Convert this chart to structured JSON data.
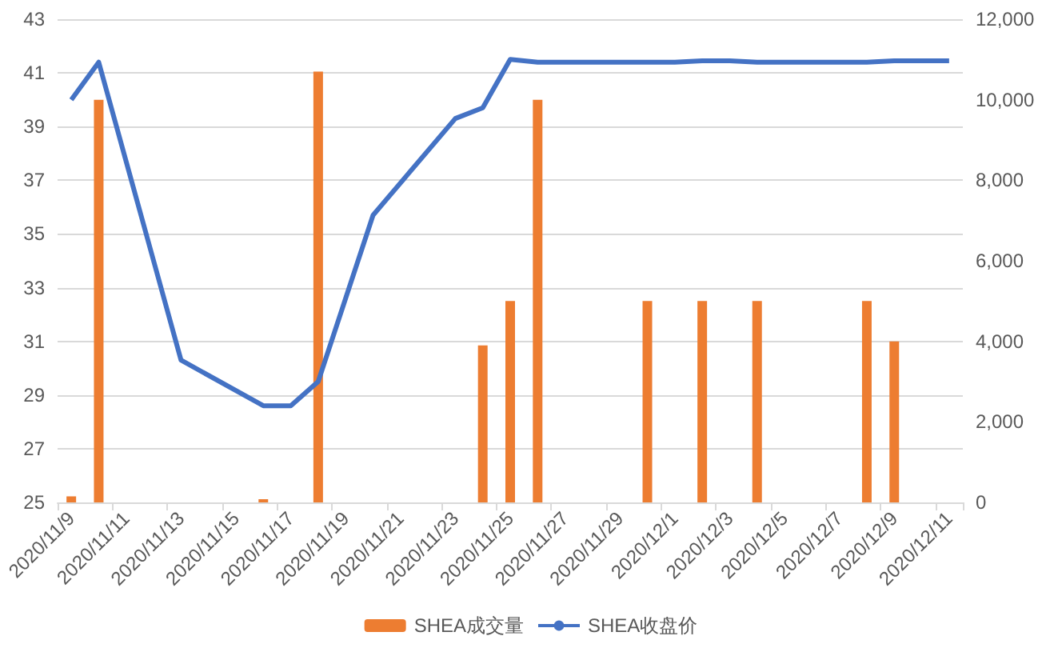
{
  "chart_data": {
    "type": "bar",
    "categories": [
      "2020/11/9",
      null,
      "2020/11/11",
      null,
      "2020/11/13",
      null,
      "2020/11/15",
      null,
      "2020/11/17",
      null,
      "2020/11/19",
      null,
      "2020/11/21",
      null,
      "2020/11/23",
      null,
      "2020/11/25",
      null,
      "2020/11/27",
      null,
      "2020/11/29",
      null,
      "2020/12/1",
      null,
      "2020/12/3",
      null,
      "2020/12/5",
      null,
      "2020/12/7",
      null,
      "2020/12/9",
      null,
      "2020/12/11"
    ],
    "series": [
      {
        "name": "SHEA成交量",
        "axis": "y2",
        "color": "#ed7d31",
        "values": [
          150,
          10000,
          null,
          null,
          null,
          null,
          null,
          80,
          null,
          10700,
          null,
          null,
          null,
          null,
          null,
          3900,
          5000,
          10000,
          null,
          null,
          null,
          5000,
          null,
          5000,
          null,
          5000,
          null,
          null,
          null,
          5000,
          4000,
          null,
          null
        ]
      },
      {
        "name": "SHEA收盘价",
        "type": "line",
        "axis": "y",
        "color": "#4472c4",
        "values": [
          40,
          41.4,
          37.7,
          34,
          30.3,
          null,
          null,
          28.6,
          28.6,
          29.5,
          32.6,
          35.7,
          null,
          null,
          39.3,
          39.7,
          41.5,
          41.4,
          41.4,
          null,
          null,
          41.4,
          41.4,
          41.45,
          41.45,
          41.4,
          null,
          null,
          41.4,
          41.4,
          41.45,
          41.45,
          41.45
        ]
      }
    ],
    "ylim": [
      25,
      43
    ],
    "yticks": [
      25,
      27,
      29,
      31,
      33,
      35,
      37,
      39,
      41,
      43
    ],
    "y2lim": [
      0,
      12000
    ],
    "y2ticks": [
      {
        "value": 0,
        "label": "0"
      },
      {
        "value": 2000,
        "label": "2,000"
      },
      {
        "value": 4000,
        "label": "4,000"
      },
      {
        "value": 6000,
        "label": "6,000"
      },
      {
        "value": 8000,
        "label": "8,000"
      },
      {
        "value": 10000,
        "label": "10,000"
      },
      {
        "value": 12000,
        "label": "12,000"
      }
    ],
    "grid": "y",
    "legend": "bottom",
    "marker": "none"
  }
}
